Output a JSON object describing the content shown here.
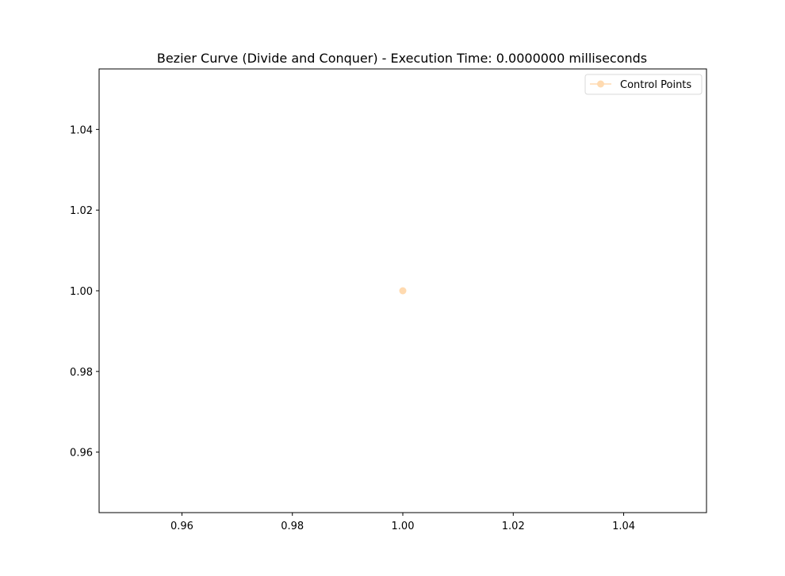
{
  "chart_data": {
    "type": "line",
    "title": "Bezier Curve (Divide and Conquer) - Execution Time: 0.0000000 milliseconds",
    "xlabel": "",
    "ylabel": "",
    "xlim": [
      0.945,
      1.055
    ],
    "ylim": [
      0.945,
      1.055
    ],
    "xticks": [
      0.96,
      0.98,
      1.0,
      1.02,
      1.04
    ],
    "yticks": [
      0.96,
      0.98,
      1.0,
      1.02,
      1.04
    ],
    "xtick_labels": [
      "0.96",
      "0.98",
      "1.00",
      "1.02",
      "1.04"
    ],
    "ytick_labels": [
      "0.96",
      "0.98",
      "1.00",
      "1.02",
      "1.04"
    ],
    "grid": false,
    "legend_position": "top-right",
    "series": [
      {
        "name": "Control Points",
        "color": "#ffdab0",
        "marker": "circle",
        "x": [
          1.0
        ],
        "y": [
          1.0
        ]
      }
    ]
  }
}
